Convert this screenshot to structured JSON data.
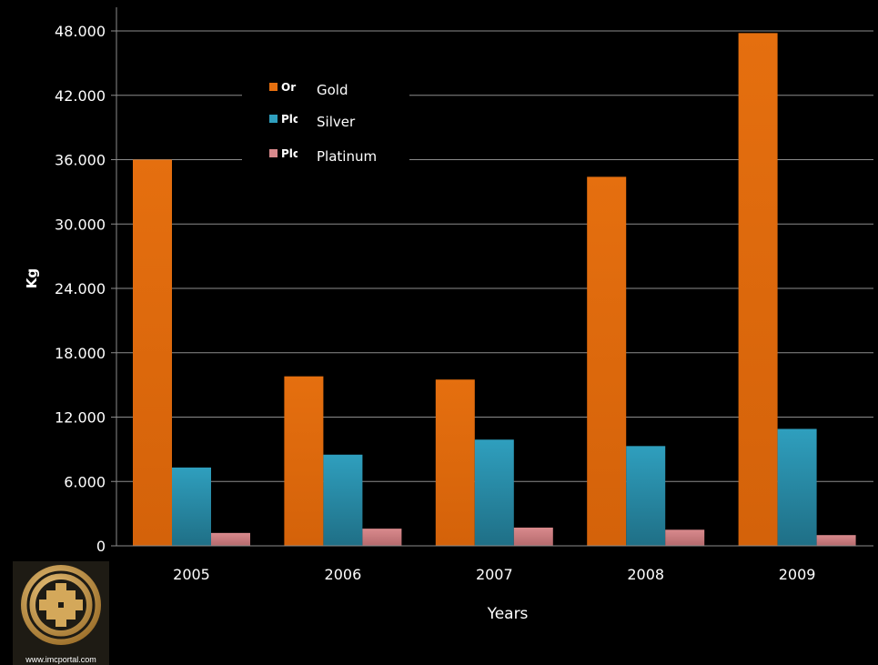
{
  "colors": {
    "background": "#000000",
    "gold": "#e56f0f",
    "silver": "#2f9fbe",
    "platinum": "#d98a8d",
    "grid": "#8c8c8c"
  },
  "chart_data": {
    "type": "bar",
    "title": "",
    "xlabel": "Years",
    "ylabel": "Kg",
    "categories": [
      "2005",
      "2006",
      "2007",
      "2008",
      "2009"
    ],
    "ylim": [
      0,
      48000
    ],
    "yticks": [
      0,
      6000,
      12000,
      18000,
      24000,
      30000,
      36000,
      42000,
      48000
    ],
    "ytick_labels": [
      "0",
      "6.000",
      "12.000",
      "18.000",
      "24.000",
      "30.000",
      "36.000",
      "42.000",
      "48.000"
    ],
    "grid": true,
    "legend_position": "top-left",
    "legend_overlay_fragments": [
      "Or",
      "Plo",
      "Plo"
    ],
    "series": [
      {
        "name": "Gold",
        "values": [
          36000,
          15800,
          15500,
          34400,
          47800
        ]
      },
      {
        "name": "Silver",
        "values": [
          7300,
          8500,
          9900,
          9300,
          10900
        ]
      },
      {
        "name": "Platinum",
        "values": [
          1200,
          1600,
          1700,
          1500,
          1000
        ]
      }
    ]
  },
  "logo": {
    "url_text": "www.imcportal.com",
    "icon": "gold-knot-emblem"
  }
}
